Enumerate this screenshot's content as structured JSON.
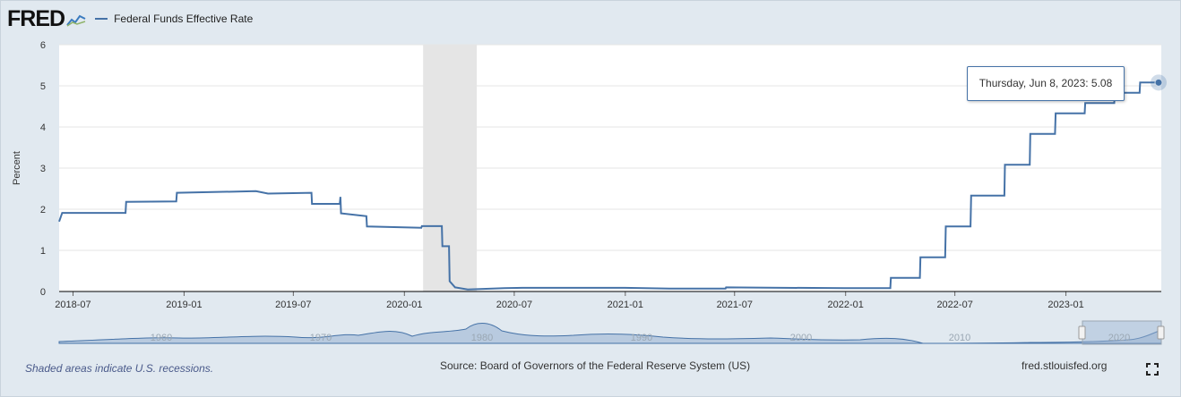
{
  "header": {
    "logo": "FRED",
    "legend_label": "Federal Funds Effective Rate",
    "series_color": "#4572a7"
  },
  "tooltip": {
    "date_label": "Thursday, Jun 8, 2023:",
    "value": "5.08"
  },
  "footer": {
    "note": "Shaded areas indicate U.S. recessions.",
    "source": "Source: Board of Governors of the Federal Reserve System (US)",
    "link": "fred.stlouisfed.org"
  },
  "navigator": {
    "years": [
      "1960",
      "1970",
      "1980",
      "1990",
      "2000",
      "2010",
      "2020"
    ]
  },
  "chart_data": {
    "type": "line",
    "title": "",
    "xlabel": "",
    "ylabel": "Percent",
    "x_range": [
      "2018-06-08",
      "2023-06-08"
    ],
    "ylim": [
      0,
      6
    ],
    "y_ticks": [
      0,
      1,
      2,
      3,
      4,
      5,
      6
    ],
    "x_ticks": [
      "2018-07",
      "2019-01",
      "2019-07",
      "2020-01",
      "2020-07",
      "2021-01",
      "2021-07",
      "2022-01",
      "2022-07",
      "2023-01"
    ],
    "grid": true,
    "recession_shading": [
      [
        "2020-02-01",
        "2020-04-30"
      ]
    ],
    "series": [
      {
        "name": "Federal Funds Effective Rate",
        "color": "#4572a7",
        "points": [
          [
            "2018-06-08",
            1.7
          ],
          [
            "2018-06-13",
            1.91
          ],
          [
            "2018-09-26",
            1.91
          ],
          [
            "2018-09-27",
            2.18
          ],
          [
            "2018-12-19",
            2.19
          ],
          [
            "2018-12-20",
            2.4
          ],
          [
            "2019-04-30",
            2.44
          ],
          [
            "2019-05-20",
            2.38
          ],
          [
            "2019-07-31",
            2.4
          ],
          [
            "2019-08-01",
            2.13
          ],
          [
            "2019-09-16",
            2.13
          ],
          [
            "2019-09-17",
            2.3
          ],
          [
            "2019-09-18",
            1.9
          ],
          [
            "2019-10-30",
            1.83
          ],
          [
            "2019-10-31",
            1.58
          ],
          [
            "2020-01-29",
            1.55
          ],
          [
            "2020-01-30",
            1.59
          ],
          [
            "2020-03-03",
            1.59
          ],
          [
            "2020-03-04",
            1.1
          ],
          [
            "2020-03-15",
            1.1
          ],
          [
            "2020-03-16",
            0.25
          ],
          [
            "2020-03-25",
            0.1
          ],
          [
            "2020-04-15",
            0.05
          ],
          [
            "2020-06-15",
            0.08
          ],
          [
            "2020-07-15",
            0.09
          ],
          [
            "2020-12-31",
            0.09
          ],
          [
            "2021-03-15",
            0.07
          ],
          [
            "2021-06-16",
            0.07
          ],
          [
            "2021-06-17",
            0.1
          ],
          [
            "2021-12-31",
            0.08
          ],
          [
            "2022-03-16",
            0.08
          ],
          [
            "2022-03-17",
            0.33
          ],
          [
            "2022-05-04",
            0.33
          ],
          [
            "2022-05-05",
            0.83
          ],
          [
            "2022-06-15",
            0.83
          ],
          [
            "2022-06-16",
            1.58
          ],
          [
            "2022-07-27",
            1.58
          ],
          [
            "2022-07-28",
            2.33
          ],
          [
            "2022-09-21",
            2.33
          ],
          [
            "2022-09-22",
            3.08
          ],
          [
            "2022-11-02",
            3.08
          ],
          [
            "2022-11-03",
            3.83
          ],
          [
            "2022-12-14",
            3.83
          ],
          [
            "2022-12-15",
            4.33
          ],
          [
            "2023-02-01",
            4.33
          ],
          [
            "2023-02-02",
            4.58
          ],
          [
            "2023-03-22",
            4.58
          ],
          [
            "2023-03-23",
            4.83
          ],
          [
            "2023-05-03",
            4.83
          ],
          [
            "2023-05-04",
            5.08
          ],
          [
            "2023-06-08",
            5.08
          ]
        ]
      }
    ]
  }
}
